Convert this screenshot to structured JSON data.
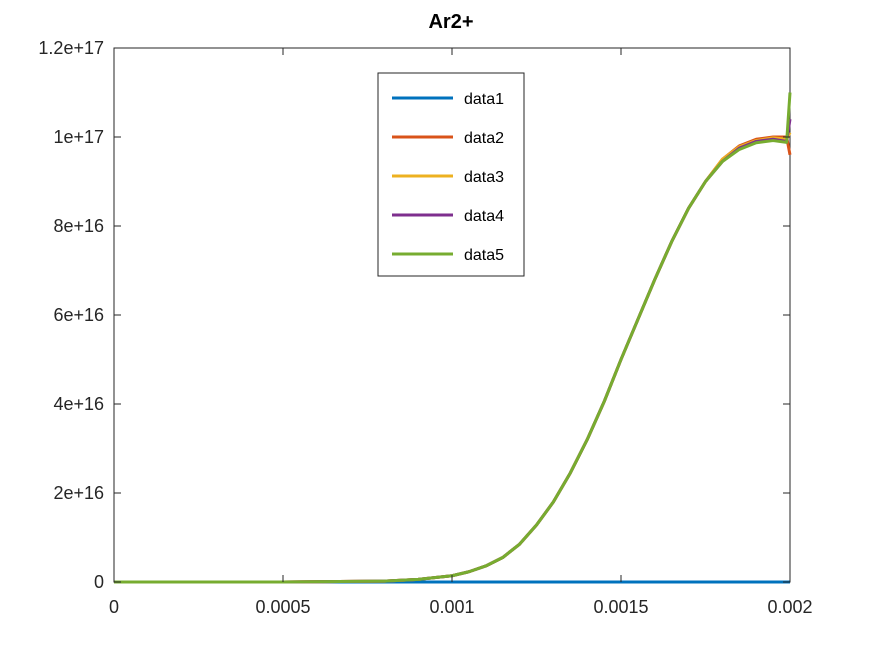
{
  "chart_data": {
    "type": "line",
    "title": "Ar2+",
    "xlabel": "",
    "ylabel": "",
    "xlim": [
      0,
      0.002
    ],
    "ylim": [
      0,
      1.2e+17
    ],
    "grid": false,
    "legend_position": "top-center",
    "x_ticks": [
      {
        "value": 0,
        "label": "0"
      },
      {
        "value": 0.0005,
        "label": "0.0005"
      },
      {
        "value": 0.001,
        "label": "0.001"
      },
      {
        "value": 0.0015,
        "label": "0.0015"
      },
      {
        "value": 0.002,
        "label": "0.002"
      }
    ],
    "y_ticks": [
      {
        "value": 0,
        "label": "0"
      },
      {
        "value": 2e+16,
        "label": "2e+16"
      },
      {
        "value": 4e+16,
        "label": "4e+16"
      },
      {
        "value": 6e+16,
        "label": "6e+16"
      },
      {
        "value": 8e+16,
        "label": "8e+16"
      },
      {
        "value": 1e+17,
        "label": "1e+17"
      },
      {
        "value": 1.2e+17,
        "label": "1.2e+17"
      }
    ],
    "series": [
      {
        "name": "data1",
        "color": "#0072BD",
        "x": [
          0,
          0.002
        ],
        "y": [
          0,
          0
        ]
      },
      {
        "name": "data2",
        "color": "#D95319",
        "x": [
          0,
          0.0005,
          0.0008,
          0.0009,
          0.001,
          0.00105,
          0.0011,
          0.00115,
          0.0012,
          0.00125,
          0.0013,
          0.00135,
          0.0014,
          0.00145,
          0.0015,
          0.00155,
          0.0016,
          0.00165,
          0.0017,
          0.00175,
          0.0018,
          0.00185,
          0.0019,
          0.00195,
          0.00199,
          0.002
        ],
        "y": [
          0,
          0,
          200000000000000.0,
          600000000000000.0,
          1400000000000000.0,
          2300000000000000.0,
          3600000000000000.0,
          5500000000000000.0,
          8500000000000000.0,
          1.28e+16,
          1.8e+16,
          2.45e+16,
          3.2e+16,
          4.05e+16,
          5e+16,
          5.9e+16,
          6.8e+16,
          7.65e+16,
          8.4e+16,
          9e+16,
          9.5e+16,
          9.8e+16,
          9.95e+16,
          1e+17,
          1e+17,
          9.6e+16
        ]
      },
      {
        "name": "data3",
        "color": "#EDB120",
        "x": [
          0,
          0.0005,
          0.0008,
          0.0009,
          0.001,
          0.00105,
          0.0011,
          0.00115,
          0.0012,
          0.00125,
          0.0013,
          0.00135,
          0.0014,
          0.00145,
          0.0015,
          0.00155,
          0.0016,
          0.00165,
          0.0017,
          0.00175,
          0.0018,
          0.00185,
          0.0019,
          0.00195,
          0.00199,
          0.002
        ],
        "y": [
          0,
          0,
          200000000000000.0,
          600000000000000.0,
          1400000000000000.0,
          2300000000000000.0,
          3600000000000000.0,
          5500000000000000.0,
          8500000000000000.0,
          1.28e+16,
          1.8e+16,
          2.45e+16,
          3.2e+16,
          4.05e+16,
          5e+16,
          5.9e+16,
          6.8e+16,
          7.65e+16,
          8.4e+16,
          9e+16,
          9.5e+16,
          9.78e+16,
          9.92e+16,
          9.98e+16,
          9.95e+16,
          1.01e+17
        ]
      },
      {
        "name": "data4",
        "color": "#7E2F8E",
        "x": [
          0,
          0.0005,
          0.0008,
          0.0009,
          0.001,
          0.00105,
          0.0011,
          0.00115,
          0.0012,
          0.00125,
          0.0013,
          0.00135,
          0.0014,
          0.00145,
          0.0015,
          0.00155,
          0.0016,
          0.00165,
          0.0017,
          0.00175,
          0.0018,
          0.00185,
          0.0019,
          0.00195,
          0.00199,
          0.002
        ],
        "y": [
          0,
          0,
          200000000000000.0,
          600000000000000.0,
          1400000000000000.0,
          2300000000000000.0,
          3600000000000000.0,
          5500000000000000.0,
          8500000000000000.0,
          1.28e+16,
          1.8e+16,
          2.45e+16,
          3.2e+16,
          4.05e+16,
          5e+16,
          5.9e+16,
          6.8e+16,
          7.65e+16,
          8.4e+16,
          9e+16,
          9.45e+16,
          9.75e+16,
          9.9e+16,
          9.95e+16,
          9.9e+16,
          1.04e+17
        ]
      },
      {
        "name": "data5",
        "color": "#77AC30",
        "x": [
          0,
          0.0005,
          0.0008,
          0.0009,
          0.001,
          0.00105,
          0.0011,
          0.00115,
          0.0012,
          0.00125,
          0.0013,
          0.00135,
          0.0014,
          0.00145,
          0.0015,
          0.00155,
          0.0016,
          0.00165,
          0.0017,
          0.00175,
          0.0018,
          0.00185,
          0.0019,
          0.00195,
          0.00199,
          0.002
        ],
        "y": [
          0,
          0,
          200000000000000.0,
          600000000000000.0,
          1400000000000000.0,
          2300000000000000.0,
          3600000000000000.0,
          5500000000000000.0,
          8500000000000000.0,
          1.28e+16,
          1.8e+16,
          2.45e+16,
          3.2e+16,
          4.05e+16,
          5e+16,
          5.9e+16,
          6.8e+16,
          7.65e+16,
          8.4e+16,
          9e+16,
          9.45e+16,
          9.72e+16,
          9.87e+16,
          9.92e+16,
          9.88e+16,
          1.1e+17
        ]
      }
    ]
  }
}
